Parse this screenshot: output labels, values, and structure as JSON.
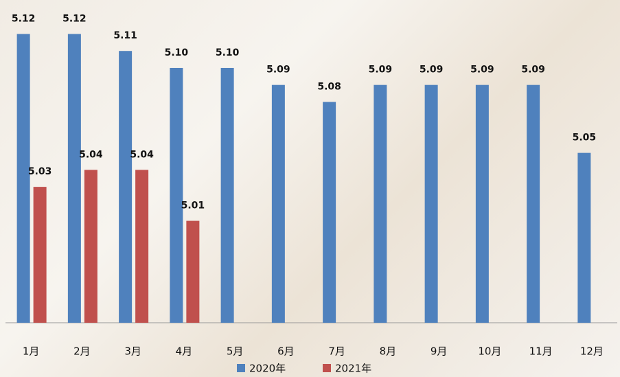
{
  "chart_data": {
    "type": "bar",
    "categories": [
      "1月",
      "2月",
      "3月",
      "4月",
      "5月",
      "6月",
      "7月",
      "8月",
      "9月",
      "10月",
      "11月",
      "12月"
    ],
    "series": [
      {
        "name": "2020年",
        "color": "#4f81bd",
        "values": [
          5.12,
          5.12,
          5.11,
          5.1,
          5.1,
          5.09,
          5.08,
          5.09,
          5.09,
          5.09,
          5.09,
          5.05
        ],
        "value_labels": [
          "5.12",
          "5.12",
          "5.11",
          "5.10",
          "5.10",
          "5.09",
          "5.08",
          "5.09",
          "5.09",
          "5.09",
          "5.09",
          "5.05"
        ]
      },
      {
        "name": "2021年",
        "color": "#c0504d",
        "values": [
          5.03,
          5.04,
          5.04,
          5.01,
          null,
          null,
          null,
          null,
          null,
          null,
          null,
          null
        ],
        "value_labels": [
          "5.03",
          "5.04",
          "5.04",
          "5.01",
          null,
          null,
          null,
          null,
          null,
          null,
          null,
          null
        ]
      }
    ],
    "ylim": [
      4.95,
      5.14
    ],
    "legend": "bottom"
  }
}
